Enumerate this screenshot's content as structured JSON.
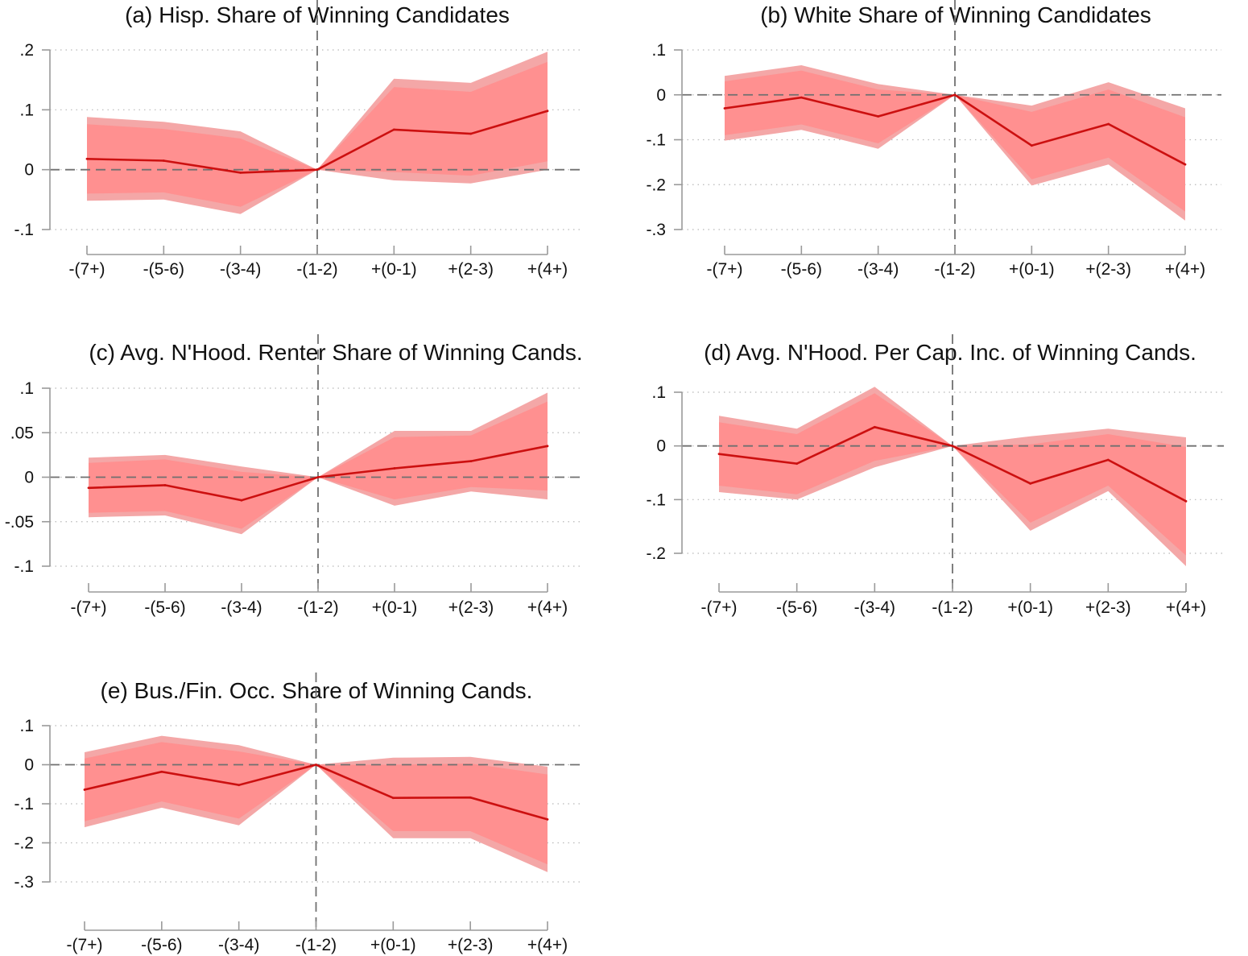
{
  "chart_data": [
    {
      "id": "a",
      "type": "line",
      "title": "(a) Hisp. Share of Winning Candidates",
      "categories": [
        "-(7+)",
        "-(5-6)",
        "-(3-4)",
        "-(1-2)",
        "+(0-1)",
        "+(2-3)",
        "+(4+)"
      ],
      "yticks": [
        ".2",
        ".1",
        "0",
        "-.1"
      ],
      "ylim": [
        -0.1,
        0.2
      ],
      "reference_category": "-(1-2)",
      "series": [
        {
          "name": "estimate",
          "values": [
            0.018,
            0.015,
            -0.005,
            0.0,
            0.067,
            0.06,
            0.098
          ]
        },
        {
          "name": "ci_outer_low",
          "values": [
            -0.052,
            -0.05,
            -0.074,
            0.0,
            -0.018,
            -0.023,
            0.0
          ]
        },
        {
          "name": "ci_outer_high",
          "values": [
            0.088,
            0.08,
            0.064,
            0.0,
            0.152,
            0.145,
            0.197
          ]
        },
        {
          "name": "ci_inner_low",
          "values": [
            -0.04,
            -0.038,
            -0.062,
            0.0,
            -0.004,
            -0.01,
            0.014
          ]
        },
        {
          "name": "ci_inner_high",
          "values": [
            0.076,
            0.068,
            0.052,
            0.0,
            0.138,
            0.13,
            0.18
          ]
        }
      ]
    },
    {
      "id": "b",
      "type": "line",
      "title": "(b) White Share of Winning Candidates",
      "categories": [
        "-(7+)",
        "-(5-6)",
        "-(3-4)",
        "-(1-2)",
        "+(0-1)",
        "+(2-3)",
        "+(4+)"
      ],
      "yticks": [
        ".1",
        "0",
        "-.1",
        "-.2",
        "-.3"
      ],
      "ylim": [
        -0.3,
        0.1
      ],
      "reference_category": "-(1-2)",
      "series": [
        {
          "name": "estimate",
          "values": [
            -0.03,
            -0.006,
            -0.048,
            0.0,
            -0.113,
            -0.065,
            -0.155
          ]
        },
        {
          "name": "ci_outer_low",
          "values": [
            -0.102,
            -0.078,
            -0.12,
            0.0,
            -0.202,
            -0.155,
            -0.28
          ]
        },
        {
          "name": "ci_outer_high",
          "values": [
            0.042,
            0.066,
            0.024,
            0.0,
            -0.024,
            0.028,
            -0.03
          ]
        },
        {
          "name": "ci_inner_low",
          "values": [
            -0.09,
            -0.066,
            -0.108,
            0.0,
            -0.188,
            -0.14,
            -0.26
          ]
        },
        {
          "name": "ci_inner_high",
          "values": [
            0.03,
            0.054,
            0.012,
            0.0,
            -0.038,
            0.012,
            -0.05
          ]
        }
      ]
    },
    {
      "id": "c",
      "type": "line",
      "title": "(c) Avg. N'Hood. Renter Share of Winning Cands.",
      "categories": [
        "-(7+)",
        "-(5-6)",
        "-(3-4)",
        "-(1-2)",
        "+(0-1)",
        "+(2-3)",
        "+(4+)"
      ],
      "yticks": [
        ".1",
        ".05",
        "0",
        "-.05",
        "-.1"
      ],
      "ylim": [
        -0.1,
        0.1
      ],
      "reference_category": "-(1-2)",
      "series": [
        {
          "name": "estimate",
          "values": [
            -0.012,
            -0.009,
            -0.026,
            0.0,
            0.01,
            0.018,
            0.035
          ]
        },
        {
          "name": "ci_outer_low",
          "values": [
            -0.045,
            -0.043,
            -0.064,
            0.0,
            -0.032,
            -0.016,
            -0.025
          ]
        },
        {
          "name": "ci_outer_high",
          "values": [
            0.022,
            0.025,
            0.012,
            0.0,
            0.052,
            0.052,
            0.095
          ]
        },
        {
          "name": "ci_inner_low",
          "values": [
            -0.04,
            -0.038,
            -0.058,
            0.0,
            -0.025,
            -0.011,
            -0.015
          ]
        },
        {
          "name": "ci_inner_high",
          "values": [
            0.016,
            0.02,
            0.006,
            0.0,
            0.045,
            0.047,
            0.085
          ]
        }
      ]
    },
    {
      "id": "d",
      "type": "line",
      "title": "(d) Avg. N'Hood. Per Cap. Inc. of Winning Cands.",
      "categories": [
        "-(7+)",
        "-(5-6)",
        "-(3-4)",
        "-(1-2)",
        "+(0-1)",
        "+(2-3)",
        "+(4+)"
      ],
      "yticks": [
        ".1",
        "0",
        "-.1",
        "-.2"
      ],
      "ylim": [
        -0.2,
        0.1
      ],
      "reference_category": "-(1-2)",
      "series": [
        {
          "name": "estimate",
          "values": [
            -0.015,
            -0.033,
            0.035,
            0.0,
            -0.07,
            -0.026,
            -0.103
          ]
        },
        {
          "name": "ci_outer_low",
          "values": [
            -0.086,
            -0.1,
            -0.04,
            0.0,
            -0.158,
            -0.084,
            -0.224
          ]
        },
        {
          "name": "ci_outer_high",
          "values": [
            0.056,
            0.032,
            0.11,
            0.0,
            0.018,
            0.032,
            0.016
          ]
        },
        {
          "name": "ci_inner_low",
          "values": [
            -0.074,
            -0.09,
            -0.028,
            0.0,
            -0.143,
            -0.074,
            -0.204
          ]
        },
        {
          "name": "ci_inner_high",
          "values": [
            0.044,
            0.022,
            0.098,
            0.0,
            0.003,
            0.022,
            -0.002
          ]
        }
      ]
    },
    {
      "id": "e",
      "type": "line",
      "title": "(e) Bus./Fin. Occ. Share of Winning Cands.",
      "categories": [
        "-(7+)",
        "-(5-6)",
        "-(3-4)",
        "-(1-2)",
        "+(0-1)",
        "+(2-3)",
        "+(4+)"
      ],
      "yticks": [
        ".1",
        "0",
        "-.1",
        "-.2",
        "-.3"
      ],
      "ylim": [
        -0.3,
        0.1
      ],
      "reference_category": "-(1-2)",
      "series": [
        {
          "name": "estimate",
          "values": [
            -0.064,
            -0.018,
            -0.052,
            0.0,
            -0.085,
            -0.084,
            -0.14
          ]
        },
        {
          "name": "ci_outer_low",
          "values": [
            -0.16,
            -0.11,
            -0.155,
            0.0,
            -0.188,
            -0.188,
            -0.275
          ]
        },
        {
          "name": "ci_outer_high",
          "values": [
            0.032,
            0.074,
            0.05,
            0.0,
            0.018,
            0.02,
            -0.005
          ]
        },
        {
          "name": "ci_inner_low",
          "values": [
            -0.145,
            -0.094,
            -0.138,
            0.0,
            -0.17,
            -0.17,
            -0.255
          ]
        },
        {
          "name": "ci_inner_high",
          "values": [
            0.016,
            0.058,
            0.034,
            0.0,
            0.0,
            0.003,
            -0.025
          ]
        }
      ]
    }
  ]
}
